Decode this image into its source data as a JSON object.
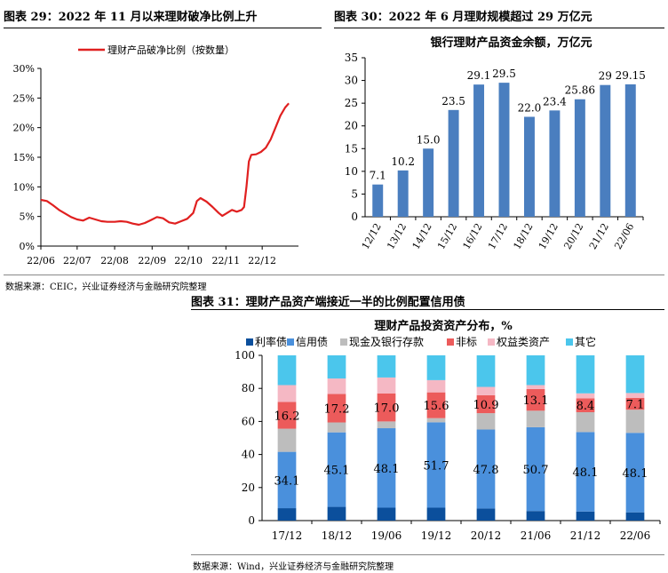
{
  "fig29": {
    "caption": "图表 29：2022 年 11 月以来理财破净比例上升",
    "source": "数据来源：CEIC，兴业证券经济与金融研究院整理",
    "chart_data": {
      "type": "line",
      "title": "",
      "legend": "理财产品破净比例（按数量）",
      "legend_position": "top-left",
      "x_tick_labels": [
        "22/06",
        "22/07",
        "22/08",
        "22/09",
        "22/10",
        "22/11",
        "22/12"
      ],
      "y_tick_labels": [
        "0%",
        "5%",
        "10%",
        "15%",
        "20%",
        "25%",
        "30%"
      ],
      "ylim": [
        0,
        30
      ],
      "unit": "%",
      "grid": false,
      "color": "#e02020",
      "points": [
        {
          "x": "2022-06-01",
          "y": 7.8
        },
        {
          "x": "2022-06-06",
          "y": 7.6
        },
        {
          "x": "2022-06-11",
          "y": 6.9
        },
        {
          "x": "2022-06-16",
          "y": 6.1
        },
        {
          "x": "2022-06-21",
          "y": 5.5
        },
        {
          "x": "2022-06-26",
          "y": 4.9
        },
        {
          "x": "2022-07-01",
          "y": 4.5
        },
        {
          "x": "2022-07-06",
          "y": 4.3
        },
        {
          "x": "2022-07-11",
          "y": 4.8
        },
        {
          "x": "2022-07-16",
          "y": 4.5
        },
        {
          "x": "2022-07-21",
          "y": 4.2
        },
        {
          "x": "2022-07-26",
          "y": 4.1
        },
        {
          "x": "2022-08-01",
          "y": 4.1
        },
        {
          "x": "2022-08-06",
          "y": 4.2
        },
        {
          "x": "2022-08-11",
          "y": 4.1
        },
        {
          "x": "2022-08-16",
          "y": 3.8
        },
        {
          "x": "2022-08-21",
          "y": 3.6
        },
        {
          "x": "2022-08-26",
          "y": 3.9
        },
        {
          "x": "2022-08-31",
          "y": 4.4
        },
        {
          "x": "2022-09-05",
          "y": 4.9
        },
        {
          "x": "2022-09-10",
          "y": 4.7
        },
        {
          "x": "2022-09-15",
          "y": 4.0
        },
        {
          "x": "2022-09-20",
          "y": 3.8
        },
        {
          "x": "2022-09-25",
          "y": 4.2
        },
        {
          "x": "2022-09-30",
          "y": 4.6
        },
        {
          "x": "2022-10-05",
          "y": 5.6
        },
        {
          "x": "2022-10-08",
          "y": 7.6
        },
        {
          "x": "2022-10-11",
          "y": 8.1
        },
        {
          "x": "2022-10-16",
          "y": 7.5
        },
        {
          "x": "2022-10-21",
          "y": 6.6
        },
        {
          "x": "2022-10-26",
          "y": 5.6
        },
        {
          "x": "2022-10-29",
          "y": 5.1
        },
        {
          "x": "2022-11-02",
          "y": 5.6
        },
        {
          "x": "2022-11-06",
          "y": 6.1
        },
        {
          "x": "2022-11-10",
          "y": 5.8
        },
        {
          "x": "2022-11-14",
          "y": 6.1
        },
        {
          "x": "2022-11-16",
          "y": 6.6
        },
        {
          "x": "2022-11-18",
          "y": 10.0
        },
        {
          "x": "2022-11-20",
          "y": 14.3
        },
        {
          "x": "2022-11-22",
          "y": 15.4
        },
        {
          "x": "2022-11-26",
          "y": 15.5
        },
        {
          "x": "2022-11-30",
          "y": 15.9
        },
        {
          "x": "2022-12-04",
          "y": 16.6
        },
        {
          "x": "2022-12-08",
          "y": 18.0
        },
        {
          "x": "2022-12-12",
          "y": 20.0
        },
        {
          "x": "2022-12-16",
          "y": 22.0
        },
        {
          "x": "2022-12-20",
          "y": 23.4
        },
        {
          "x": "2022-12-23",
          "y": 24.1
        }
      ]
    }
  },
  "fig30": {
    "caption": "图表 30：2022 年 6 月理财规模超过 29 万亿元",
    "chart_data": {
      "type": "bar",
      "title": "银行理财产品资金余额，万亿元",
      "categories": [
        "12/12",
        "13/12",
        "14/12",
        "15/12",
        "16/12",
        "17/12",
        "18/12",
        "19/12",
        "20/12",
        "21/12",
        "22/06"
      ],
      "values": [
        7.1,
        10.2,
        15.0,
        23.5,
        29.1,
        29.5,
        22.0,
        23.4,
        25.86,
        29,
        29.15
      ],
      "value_labels": [
        "7.1",
        "10.2",
        "15.0",
        "23.5",
        "29.1",
        "29.5",
        "22.0",
        "23.4",
        "25.86",
        "29",
        "29.15"
      ],
      "y_tick_labels": [
        "0",
        "5",
        "10",
        "15",
        "20",
        "25",
        "30",
        "35"
      ],
      "ylim": [
        0,
        35
      ],
      "grid": false,
      "color": "#4a7ebf"
    }
  },
  "fig31": {
    "caption": "图表 31：理财产品资产端接近一半的比例配置信用债",
    "source": "数据来源：Wind，兴业证券经济与金融研究院整理",
    "chart_data": {
      "type": "bar",
      "stacked": true,
      "title": "理财产品投资资产分布，%",
      "categories": [
        "17/12",
        "18/12",
        "19/06",
        "19/12",
        "20/12",
        "21/06",
        "21/12",
        "22/06"
      ],
      "y_tick_labels": [
        "0",
        "20",
        "40",
        "60",
        "80",
        "100"
      ],
      "ylim": [
        0,
        100
      ],
      "legend_position": "top",
      "series": [
        {
          "name": "利率债",
          "color": "#0b4f9c",
          "values": [
            7.5,
            8.3,
            7.8,
            7.8,
            7.3,
            5.8,
            5.5,
            5.0
          ]
        },
        {
          "name": "信用债",
          "color": "#4a90dc",
          "values": [
            34.1,
            45.1,
            48.1,
            51.7,
            47.8,
            50.7,
            48.1,
            48.1
          ],
          "labels": [
            "34.1",
            "45.1",
            "48.1",
            "51.7",
            "47.8",
            "50.7",
            "48.1",
            "48.1"
          ]
        },
        {
          "name": "现金及银行存款",
          "color": "#bdbdbd",
          "values": [
            14.0,
            6.0,
            4.1,
            2.5,
            9.9,
            10.0,
            12.0,
            14.0
          ]
        },
        {
          "name": "非标",
          "color": "#ec5b5b",
          "values": [
            16.2,
            17.2,
            17.0,
            15.6,
            10.9,
            13.1,
            8.4,
            7.1
          ],
          "labels": [
            "16.2",
            "17.2",
            "17.0",
            "15.6",
            "10.9",
            "13.1",
            "8.4",
            "7.1"
          ]
        },
        {
          "name": "权益类资产",
          "color": "#f5b8c4",
          "values": [
            10.2,
            9.4,
            9.6,
            7.4,
            5.0,
            2.4,
            3.0,
            3.0
          ]
        },
        {
          "name": "其它",
          "color": "#4bc6ec",
          "values": [
            18.0,
            14.0,
            13.4,
            15.0,
            19.1,
            18.0,
            23.0,
            22.8
          ]
        }
      ]
    }
  }
}
